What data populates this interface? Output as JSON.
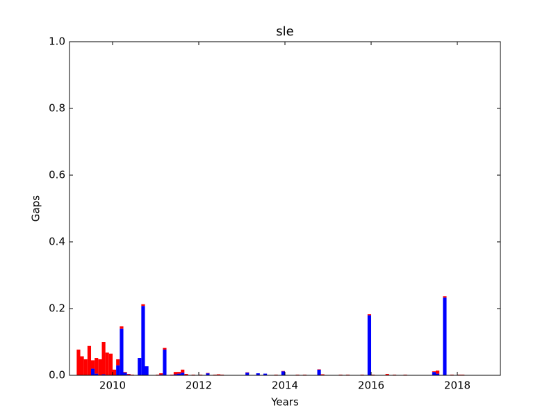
{
  "chart_data": {
    "type": "stacked-bar",
    "title": "sle",
    "xlabel": "Years",
    "ylabel": "Gaps",
    "x": [
      2009.167,
      2009.25,
      2009.333,
      2009.417,
      2009.5,
      2009.583,
      2009.667,
      2009.75,
      2009.833,
      2009.917,
      2010.0,
      2010.083,
      2010.167,
      2010.25,
      2010.333,
      2010.417,
      2010.583,
      2010.667,
      2010.75,
      2011.0,
      2011.083,
      2011.167,
      2011.333,
      2011.417,
      2011.5,
      2011.583,
      2011.667,
      2011.833,
      2012.0,
      2012.167,
      2012.333,
      2012.417,
      2012.5,
      2013.083,
      2013.333,
      2013.5,
      2013.75,
      2013.917,
      2014.25,
      2014.417,
      2014.75,
      2014.833,
      2015.25,
      2015.417,
      2015.75,
      2015.917,
      2016.0,
      2016.333,
      2016.5,
      2016.75,
      2017.417,
      2017.5,
      2017.667,
      2017.833,
      2018.0,
      2018.083
    ],
    "series": [
      {
        "color": "#0000ff",
        "values": [
          0,
          0,
          0,
          0,
          0.02,
          0.005,
          0,
          0.003,
          0,
          0,
          0,
          0.03,
          0.14,
          0.008,
          0.002,
          0,
          0.052,
          0.208,
          0.027,
          0,
          0.002,
          0.077,
          0,
          0.003,
          0.005,
          0.008,
          0,
          0,
          0,
          0.006,
          0,
          0,
          0,
          0.008,
          0.006,
          0.005,
          0,
          0.012,
          0,
          0,
          0.017,
          0,
          0,
          0,
          0,
          0.18,
          0,
          0.001,
          0,
          0,
          0.01,
          0.005,
          0.233,
          0,
          0,
          0
        ]
      },
      {
        "color": "#ff0000",
        "values": [
          0.077,
          0.057,
          0.048,
          0.088,
          0.025,
          0.047,
          0.048,
          0.097,
          0.068,
          0.065,
          0.017,
          0.018,
          0.007,
          0.002,
          0.002,
          0.002,
          0,
          0.005,
          0,
          0.002,
          0.004,
          0.005,
          0.002,
          0.007,
          0.005,
          0.009,
          0.004,
          0.002,
          0.002,
          0.001,
          0.002,
          0.003,
          0.002,
          0.001,
          0,
          0,
          0.002,
          0.001,
          0.002,
          0.002,
          0.001,
          0.003,
          0.002,
          0.002,
          0.002,
          0.003,
          0.002,
          0.003,
          0.002,
          0.002,
          0.002,
          0.009,
          0.004,
          0.002,
          0.002,
          0.002
        ]
      }
    ],
    "xlim": [
      2009,
      2019
    ],
    "ylim": [
      0,
      1
    ],
    "xticks": [
      2010,
      2012,
      2014,
      2016,
      2018
    ],
    "yticks": [
      {
        "value": 0,
        "label": "0.0"
      },
      {
        "value": 0.2,
        "label": "0.2"
      },
      {
        "value": 0.4,
        "label": "0.4"
      },
      {
        "value": 0.6,
        "label": "0.6"
      },
      {
        "value": 0.8,
        "label": "0.8"
      },
      {
        "value": 1,
        "label": "1.0"
      }
    ]
  }
}
